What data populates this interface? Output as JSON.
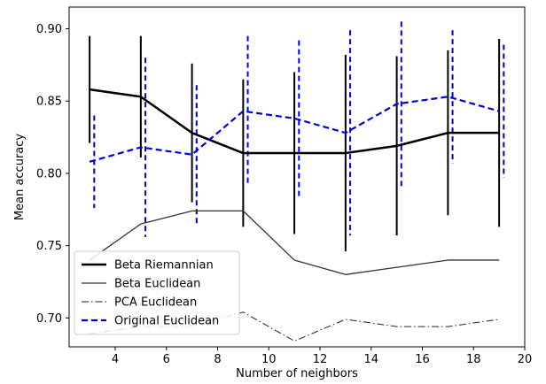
{
  "chart_data": {
    "type": "line",
    "xlabel": "Number of neighbors",
    "ylabel": "Mean accuracy",
    "xlim": [
      2.2,
      20
    ],
    "ylim": [
      0.68,
      0.915
    ],
    "xticks": [
      4,
      6,
      8,
      10,
      12,
      14,
      16,
      18,
      20
    ],
    "yticks": [
      0.7,
      0.75,
      0.8,
      0.85,
      0.9
    ],
    "xtick_labels": [
      "4",
      "6",
      "8",
      "10",
      "12",
      "14",
      "16",
      "18",
      "20"
    ],
    "ytick_labels": [
      "0.70",
      "0.75",
      "0.80",
      "0.85",
      "0.90"
    ],
    "grid": false,
    "legend": {
      "position": "lower-left"
    },
    "series": [
      {
        "name": "Beta Riemannian",
        "style": "solid",
        "color": "#000000",
        "width": 2.5,
        "x": [
          3,
          5,
          7,
          9,
          11,
          13,
          15,
          17,
          19
        ],
        "y": [
          0.858,
          0.853,
          0.828,
          0.814,
          0.814,
          0.814,
          0.819,
          0.828,
          0.828
        ],
        "error": [
          0.037,
          0.042,
          0.048,
          0.051,
          0.056,
          0.068,
          0.062,
          0.057,
          0.065
        ],
        "error_offset": 0
      },
      {
        "name": "Beta Euclidean",
        "style": "solid",
        "color": "#333333",
        "width": 1.3,
        "x": [
          3,
          5,
          7,
          9,
          11,
          13,
          15,
          17,
          19
        ],
        "y": [
          0.74,
          0.765,
          0.774,
          0.774,
          0.74,
          0.73,
          0.735,
          0.74,
          0.74
        ]
      },
      {
        "name": "PCA Euclidean",
        "style": "dashdot",
        "color": "#222222",
        "width": 1.0,
        "x": [
          3,
          5,
          7,
          9,
          11,
          13,
          15,
          17,
          19
        ],
        "y": [
          0.689,
          0.694,
          0.694,
          0.704,
          0.684,
          0.699,
          0.694,
          0.694,
          0.699
        ]
      },
      {
        "name": "Original Euclidean",
        "style": "dashed",
        "color": "#0000dd",
        "width": 2.2,
        "x": [
          3,
          5,
          7,
          9,
          11,
          13,
          15,
          17,
          19
        ],
        "y": [
          0.808,
          0.818,
          0.813,
          0.843,
          0.838,
          0.828,
          0.848,
          0.853,
          0.843
        ],
        "error": [
          0.032,
          0.062,
          0.048,
          0.052,
          0.054,
          0.071,
          0.057,
          0.046,
          0.046
        ],
        "error_offset": 0.18
      }
    ]
  }
}
